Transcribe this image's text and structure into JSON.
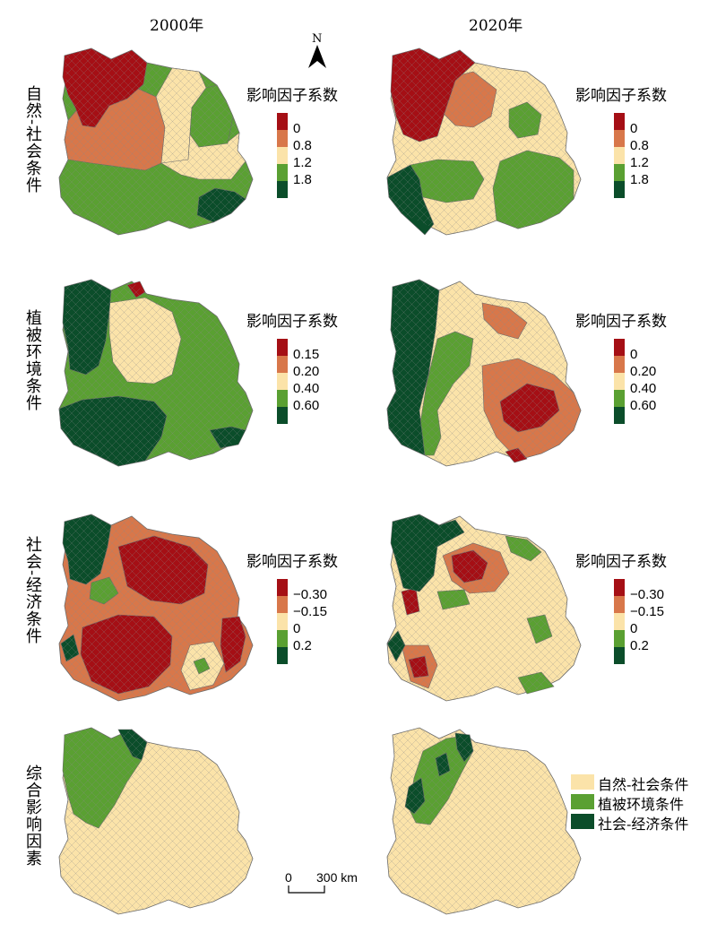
{
  "columns": [
    "2000年",
    "2020年"
  ],
  "rows": [
    "自然-社会条件",
    "植被环境条件",
    "社会-经济条件",
    "综合影响因素"
  ],
  "legend_title": "影响因子系数",
  "legends": {
    "natural_social": {
      "labels": [
        "0",
        "0.8",
        "1.2",
        "1.8"
      ],
      "colors": [
        "#a50f15",
        "#d8774a",
        "#fbe3a9",
        "#5aa032",
        "#0b4d2a"
      ]
    },
    "vegetation": {
      "y2000": {
        "labels": [
          "0.15",
          "0.20",
          "0.40",
          "0.60"
        ],
        "colors": [
          "#a50f15",
          "#d8774a",
          "#fbe3a9",
          "#5aa032",
          "#0b4d2a"
        ]
      },
      "y2020": {
        "labels": [
          "0",
          "0.20",
          "0.40",
          "0.60"
        ],
        "colors": [
          "#a50f15",
          "#d8774a",
          "#fbe3a9",
          "#5aa032",
          "#0b4d2a"
        ]
      }
    },
    "socio_economic": {
      "labels": [
        "−0.30",
        "−0.15",
        "0",
        "0.2"
      ],
      "colors": [
        "#a50f15",
        "#d8774a",
        "#fbe3a9",
        "#5aa032",
        "#0b4d2a"
      ]
    }
  },
  "categories": [
    {
      "label": "自然-社会条件",
      "color": "#fbe3a9"
    },
    {
      "label": "植被环境条件",
      "color": "#5aa032"
    },
    {
      "label": "社会-经济条件",
      "color": "#0b4d2a"
    }
  ],
  "north_label": "N",
  "scale_bar": {
    "zero": "0",
    "label": "300 km"
  },
  "palette": {
    "red": "#a50f15",
    "orange": "#d8774a",
    "cream": "#fbe3a9",
    "green": "#5aa032",
    "dark": "#0b4d2a",
    "edge": "#6b6b6b"
  }
}
